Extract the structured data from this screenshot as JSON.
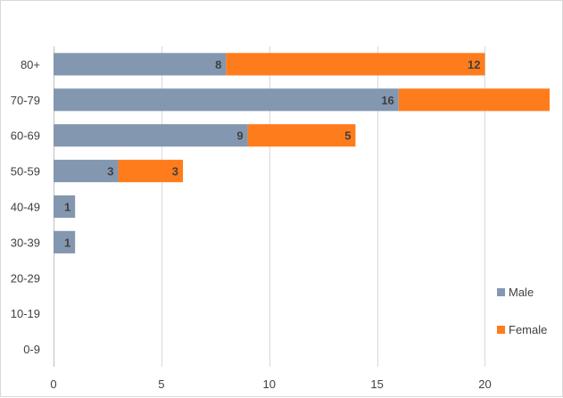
{
  "chart_data": {
    "type": "bar",
    "orientation": "horizontal",
    "stacked": true,
    "title": "",
    "xlabel": "",
    "ylabel": "",
    "categories": [
      "80+",
      "70-79",
      "60-69",
      "50-59",
      "40-49",
      "30-39",
      "20-29",
      "10-19",
      "0-9"
    ],
    "series": [
      {
        "name": "Male",
        "color": "#8497b0",
        "values": [
          8,
          16,
          9,
          3,
          1,
          1,
          0,
          0,
          0
        ]
      },
      {
        "name": "Female",
        "color": "#ff7c1c",
        "values": [
          12,
          7,
          5,
          3,
          0,
          0,
          0,
          0,
          0
        ]
      }
    ],
    "data_labels": {
      "Male": [
        "8",
        "16",
        "9",
        "3",
        "1",
        "1",
        "",
        "",
        ""
      ],
      "Female": [
        "12",
        "",
        "5",
        "3",
        "",
        "",
        "",
        "",
        ""
      ]
    },
    "xlim": [
      0,
      23
    ],
    "xticks": [
      0,
      5,
      10,
      15,
      20
    ],
    "xtick_labels": [
      "0",
      "5",
      "10",
      "15",
      "20"
    ],
    "grid": true,
    "legend_position": "right"
  }
}
